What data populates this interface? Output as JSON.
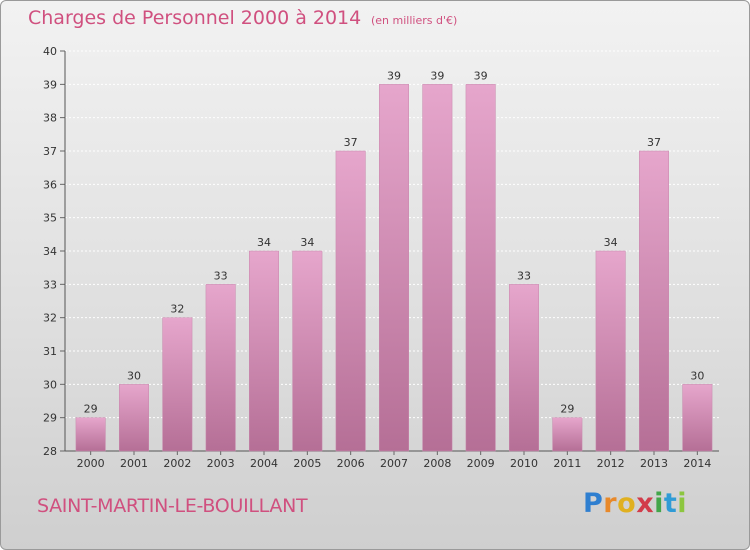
{
  "header": {
    "title": "Charges de Personnel 2000 à 2014",
    "units": "(en milliers d'€)"
  },
  "footer": {
    "location": "SAINT-MARTIN-LE-BOUILLANT",
    "logo": "Proxiti"
  },
  "colors": {
    "bar_top": "#e6a6cc",
    "bar_bottom": "#b56f96",
    "title": "#d0507f",
    "grid": "#ffffff"
  },
  "chart_data": {
    "type": "bar",
    "title": "Charges de Personnel 2000 à 2014",
    "subtitle": "(en milliers d'€)",
    "xlabel": "",
    "ylabel": "",
    "categories": [
      "2000",
      "2001",
      "2002",
      "2003",
      "2004",
      "2005",
      "2006",
      "2007",
      "2008",
      "2009",
      "2010",
      "2011",
      "2012",
      "2013",
      "2014"
    ],
    "values": [
      29,
      30,
      32,
      33,
      34,
      34,
      37,
      39,
      39,
      39,
      33,
      29,
      34,
      37,
      30
    ],
    "ylim": [
      28,
      40
    ],
    "yticks": [
      28,
      29,
      30,
      31,
      32,
      33,
      34,
      35,
      36,
      37,
      38,
      39,
      40
    ],
    "grid": true,
    "data_labels": true
  }
}
